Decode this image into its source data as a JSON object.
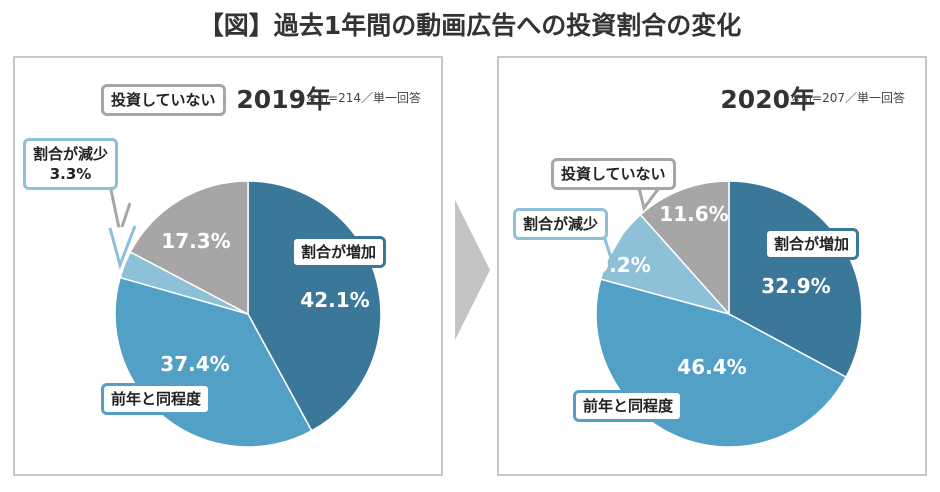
{
  "title": "【図】過去1年間の動画広告への投資割合の変化",
  "colors": {
    "increase": "#3a7799",
    "same": "#52a0c6",
    "decrease": "#8ec0d8",
    "none": "#a6a6a6"
  },
  "chart_data": [
    {
      "type": "pie",
      "title": "2019年",
      "note": "※ n=214／単一回答",
      "categories": [
        "割合が増加",
        "前年と同程度",
        "割合が減少",
        "投資していない"
      ],
      "values": [
        42.1,
        37.4,
        3.3,
        17.3
      ],
      "labels": [
        "42.1%",
        "37.4%",
        "3.3%",
        "17.3%"
      ]
    },
    {
      "type": "pie",
      "title": "2020年",
      "note": "※ n=207／単一回答",
      "categories": [
        "割合が増加",
        "前年と同程度",
        "割合が減少",
        "投資していない"
      ],
      "values": [
        32.9,
        46.4,
        9.2,
        11.6
      ],
      "labels": [
        "32.9%",
        "46.4%",
        "9.2%",
        "11.6%"
      ]
    }
  ]
}
